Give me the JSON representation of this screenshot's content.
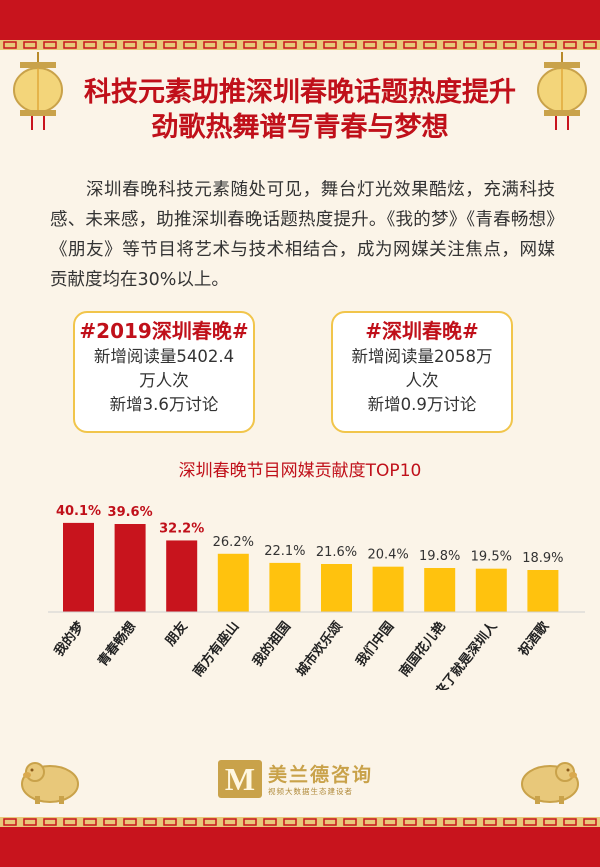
{
  "title": {
    "line1": "科技元素助推深圳春晚话题热度提升",
    "line2": "劲歌热舞谱写青春与梦想"
  },
  "intro": "深圳春晚科技元素随处可见，舞台灯光效果酷炫，充满科技感、未来感，助推深圳春晚话题热度提升。《我的梦》《青春畅想》《朋友》等节目将艺术与技术相结合，成为网媒关注焦点，网媒贡献度均在30%以上。",
  "cards": [
    {
      "tag": "#2019深圳春晚#",
      "line1": "新增阅读量5402.4",
      "line2": "万人次",
      "line3": "新增3.6万讨论"
    },
    {
      "tag": "#深圳春晚#",
      "line1": "新增阅读量2058万",
      "line2": "人次",
      "line3": "新增0.9万讨论"
    }
  ],
  "brand": {
    "name": "美兰德咨询",
    "tagline": "视频大数据生态建设者",
    "logo_letter": "M"
  },
  "colors": {
    "red": "#c8141d",
    "gold": "#ffc20e",
    "label_red": "#c0101a"
  },
  "chart_data": {
    "type": "bar",
    "title": "深圳春晚节目网媒贡献度TOP10",
    "categories": [
      "我的梦",
      "青春畅想",
      "朋友",
      "南方有座山",
      "我的祖国",
      "城市欢乐颂",
      "我们中国",
      "南国花儿艳",
      "来了就是深圳人",
      "祝酒歌"
    ],
    "values": [
      40.1,
      39.6,
      32.2,
      26.2,
      22.1,
      21.6,
      20.4,
      19.8,
      19.5,
      18.9
    ],
    "value_labels": [
      "40.1%",
      "39.6%",
      "32.2%",
      "26.2%",
      "22.1%",
      "21.6%",
      "20.4%",
      "19.8%",
      "19.5%",
      "18.9%"
    ],
    "highlight_top": 3,
    "ylim": [
      0,
      45
    ],
    "xlabel": "",
    "ylabel": "",
    "grid": false
  }
}
